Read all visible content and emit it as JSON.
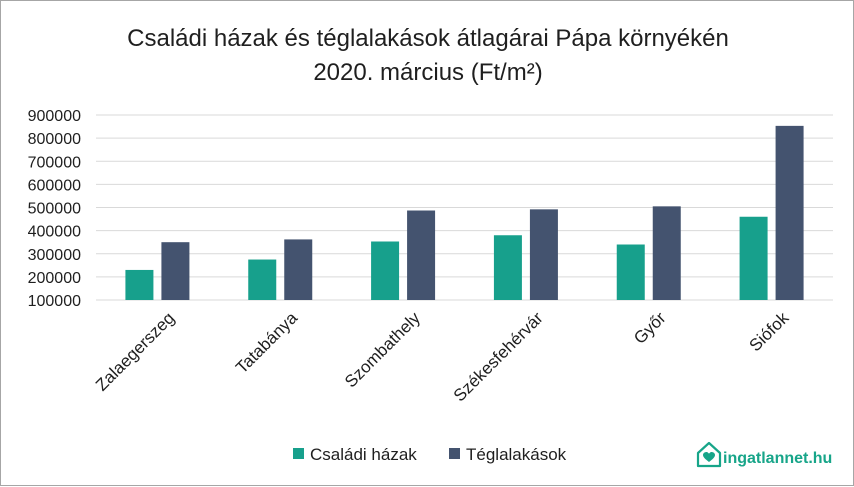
{
  "chart_data": {
    "type": "bar",
    "title": "Családi házak és téglalakások átlagárai Pápa környékén",
    "subtitle": "2020. március (Ft/m²)",
    "categories": [
      "Zalaegerszeg",
      "Tatabánya",
      "Szombathely",
      "Székesfehérvár",
      "Győr",
      "Siófok"
    ],
    "series": [
      {
        "name": "Családi házak",
        "color": "#17a08c",
        "values": [
          230000,
          275000,
          353000,
          380000,
          340000,
          460000
        ]
      },
      {
        "name": "Téglalakások",
        "color": "#44536f",
        "values": [
          350000,
          362000,
          487000,
          492000,
          505000,
          853000
        ]
      }
    ],
    "yticks": [
      "100000",
      "200000",
      "300000",
      "400000",
      "500000",
      "600000",
      "700000",
      "800000",
      "900000"
    ],
    "ylim": [
      100000,
      900000
    ],
    "grid": true,
    "legend": "bottom"
  },
  "brand": {
    "name": "ingatlannet.hu",
    "color": "#17a589"
  }
}
